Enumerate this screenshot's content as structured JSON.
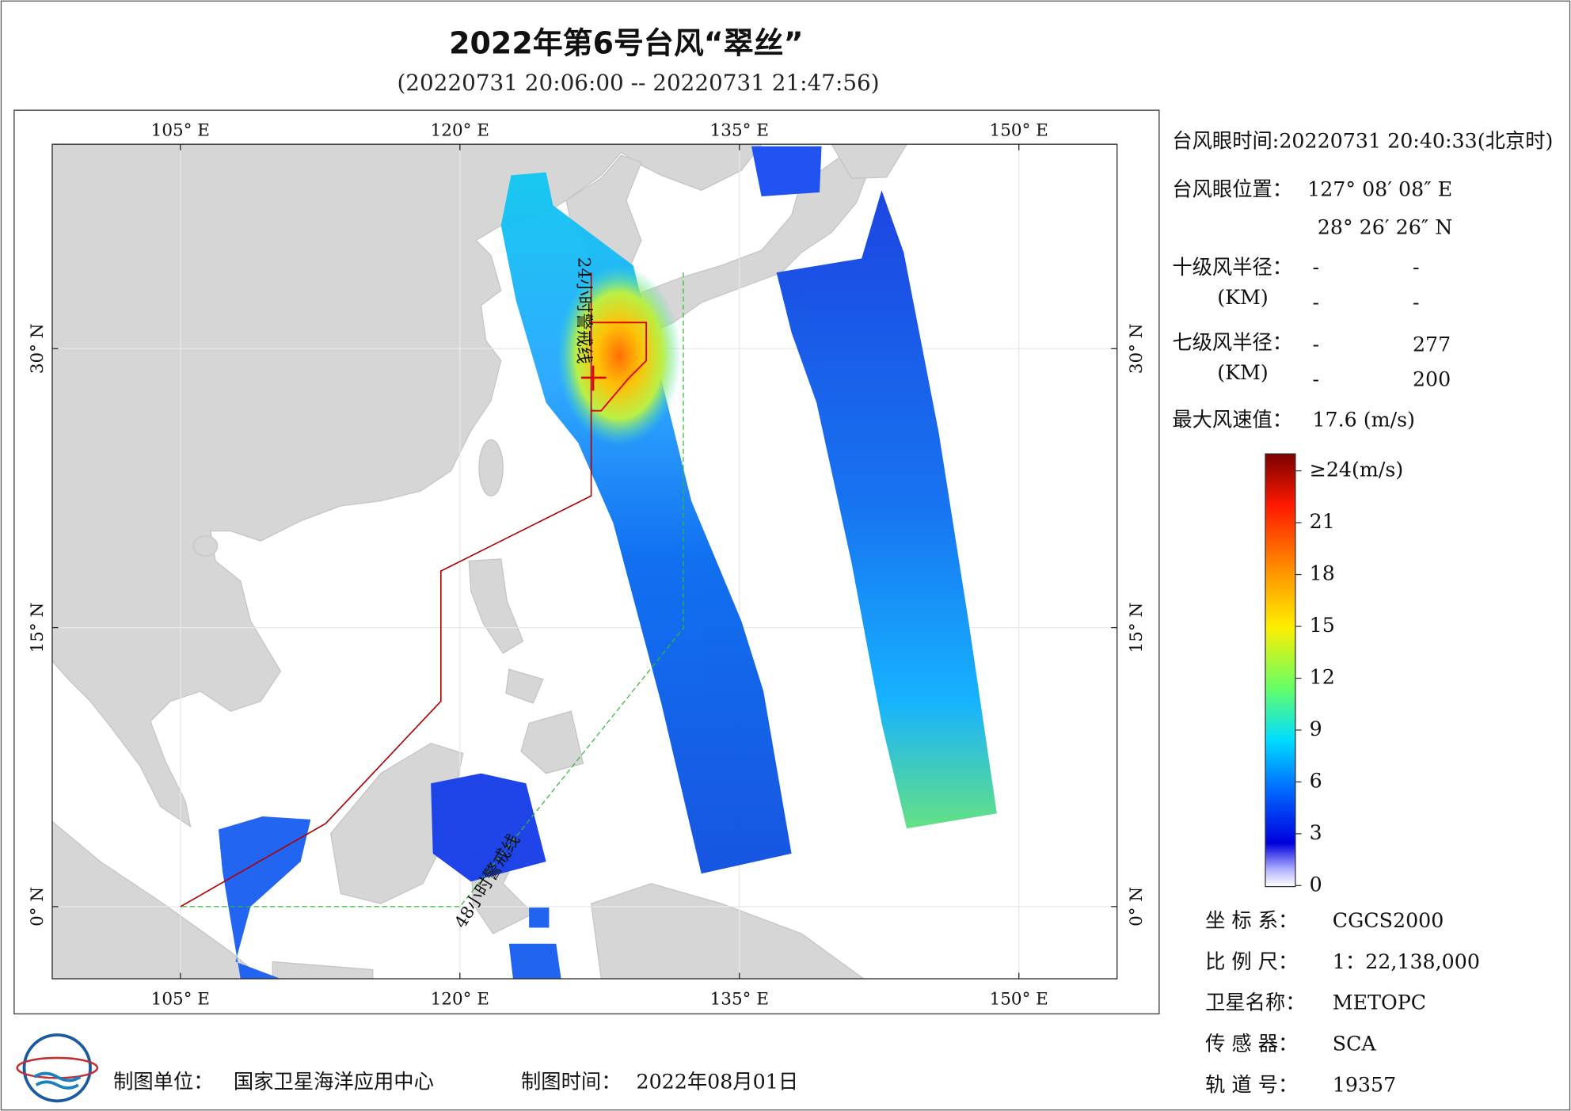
{
  "header": {
    "title": "2022年第6号台风“翠丝”",
    "subtitle": "(20220731 20:06:00 -- 20220731 21:47:56)"
  },
  "map": {
    "xlim": [
      98.12,
      155.27
    ],
    "ylim": [
      -3.88,
      40.99
    ],
    "lon_ticks": [
      {
        "value": 105,
        "label": "105° E"
      },
      {
        "value": 120,
        "label": "120° E"
      },
      {
        "value": 135,
        "label": "135° E"
      },
      {
        "value": 150,
        "label": "150° E"
      }
    ],
    "lat_ticks": [
      {
        "value": 0,
        "label": "0° N"
      },
      {
        "value": 15,
        "label": "15° N"
      },
      {
        "value": 30,
        "label": "30° N"
      }
    ],
    "labels": [
      "24小时警戒线",
      "48小时警戒线"
    ]
  },
  "info": {
    "eye_time": "台风眼时间:20220731 20:40:33(北京时)",
    "eye_position_label": "台风眼位置：",
    "eye_lon": "127° 08′ 08″ E",
    "eye_lat": "28° 26′ 26″ N",
    "r10_label": "十级风半径：",
    "r10_unit": "(KM)",
    "r10_values": [
      "-",
      "-",
      "-",
      "-"
    ],
    "r7_label": "七级风半径：",
    "r7_unit": "(KM)",
    "r7_values": [
      "-",
      277,
      "-",
      200
    ],
    "max_wind_label": "最大风速值：",
    "max_wind": "17.6  (m/s)"
  },
  "colorbar": {
    "range": [
      0,
      24
    ],
    "ticks": [
      {
        "value": 24,
        "label": "≥24(m/s)"
      },
      21,
      18,
      15,
      12,
      9,
      6,
      3,
      0
    ]
  },
  "meta": [
    [
      "坐 标 系：",
      "CGCS2000"
    ],
    [
      "比 例 尺：",
      "1：22,138,000"
    ],
    [
      "卫星名称：",
      "METOPC"
    ],
    [
      "传 感 器：",
      "SCA"
    ],
    [
      "轨 道 号：",
      "19357"
    ]
  ],
  "footer": {
    "unit_label": "制图单位：",
    "unit": "国家卫星海洋应用中心",
    "time_label": "制图时间：",
    "time": "2022年08月01日"
  }
}
